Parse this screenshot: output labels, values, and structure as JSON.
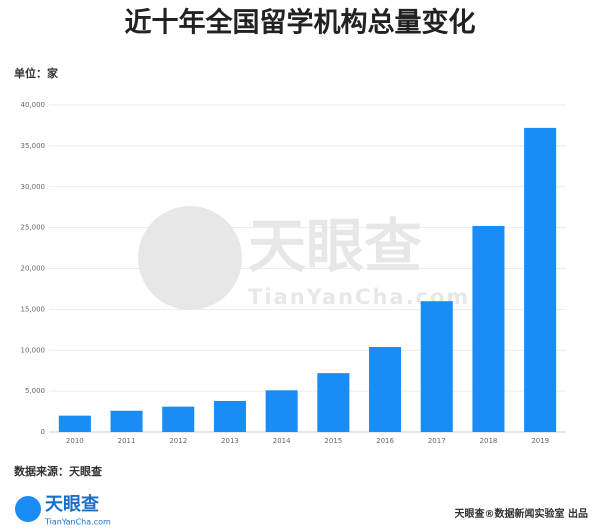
{
  "chart_data": {
    "type": "bar",
    "title": "近十年全国留学机构总量变化",
    "unit": "单位：家",
    "categories": [
      "2010",
      "2011",
      "2012",
      "2013",
      "2014",
      "2015",
      "2016",
      "2017",
      "2018",
      "2019"
    ],
    "values": [
      2000,
      2600,
      3100,
      3800,
      5100,
      7200,
      10400,
      16000,
      25200,
      37200
    ],
    "color": "#1a8cf6",
    "ylim": [
      0,
      40000
    ],
    "yticks": [
      0,
      {
        "value": 5000,
        "label": "5,000"
      },
      {
        "value": 10000,
        "label": "10,000"
      },
      {
        "value": 15000,
        "label": "15,000"
      },
      {
        "value": 20000,
        "label": "20,000"
      },
      {
        "value": 25000,
        "label": "25,000"
      },
      {
        "value": 30000,
        "label": "30,000"
      },
      {
        "value": 35000,
        "label": "35,000"
      },
      {
        "value": 40000,
        "label": "40,000"
      }
    ],
    "grid": true,
    "source": "数据来源：天眼查",
    "brand_name": "天眼查",
    "brand_url": "TianYanCha.com",
    "credit": "天眼查®数据新闻实验室 出品"
  }
}
